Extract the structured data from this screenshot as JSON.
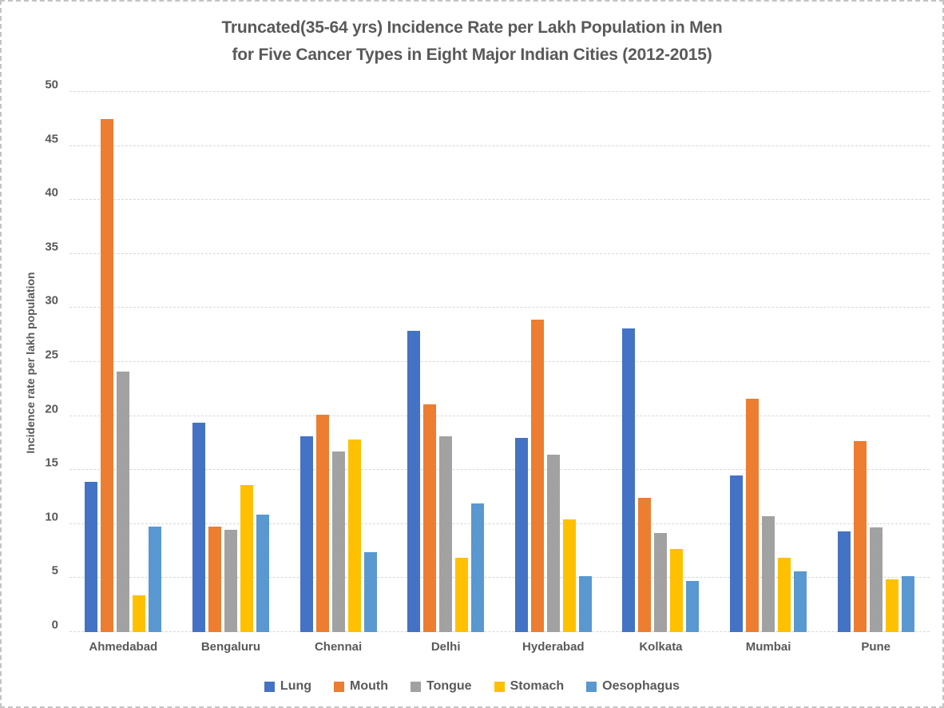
{
  "title": {
    "line1": "Truncated(35-64 yrs) Incidence Rate per Lakh Population in Men",
    "line2": "for Five Cancer Types in Eight Major Indian Cities (2012-2015)"
  },
  "chart_data": {
    "type": "bar",
    "title": "Truncated(35-64 yrs) Incidence Rate per Lakh Population in Men for Five Cancer Types in Eight Major Indian Cities (2012-2015)",
    "xlabel": "",
    "ylabel": "Incidence rate per lakh population",
    "ylim": [
      0,
      50
    ],
    "ytick_step": 5,
    "grid": true,
    "legend_position": "bottom",
    "categories": [
      "Ahmedabad",
      "Bengaluru",
      "Chennai",
      "Delhi",
      "Hyderabad",
      "Kolkata",
      "Mumbai",
      "Pune"
    ],
    "series": [
      {
        "name": "Lung",
        "color": "#4472C4",
        "pattern": "solid",
        "values": [
          13.9,
          19.4,
          18.1,
          27.9,
          18.0,
          28.1,
          14.5,
          9.3
        ]
      },
      {
        "name": "Mouth",
        "color": "#ED7D31",
        "pattern": "solid",
        "values": [
          47.5,
          9.8,
          20.1,
          21.1,
          28.9,
          12.4,
          21.6,
          17.7
        ]
      },
      {
        "name": "Tongue",
        "color": "#A5A5A5",
        "pattern": "stipple",
        "values": [
          24.1,
          9.5,
          16.7,
          18.1,
          16.4,
          9.2,
          10.7,
          9.7
        ]
      },
      {
        "name": "Stomach",
        "color": "#FFC000",
        "pattern": "solid",
        "values": [
          3.4,
          13.6,
          17.8,
          6.9,
          10.4,
          7.7,
          6.9,
          4.9
        ]
      },
      {
        "name": "Oesophagus",
        "color": "#5B9BD5",
        "pattern": "stipple",
        "values": [
          9.8,
          10.9,
          7.4,
          11.9,
          5.2,
          4.7,
          5.6,
          5.2
        ]
      }
    ]
  },
  "colors": {
    "text": "#595959",
    "gridline": "#D8D8D8",
    "frame_border": "#C4C4C4",
    "background": "#FFFFFF"
  }
}
